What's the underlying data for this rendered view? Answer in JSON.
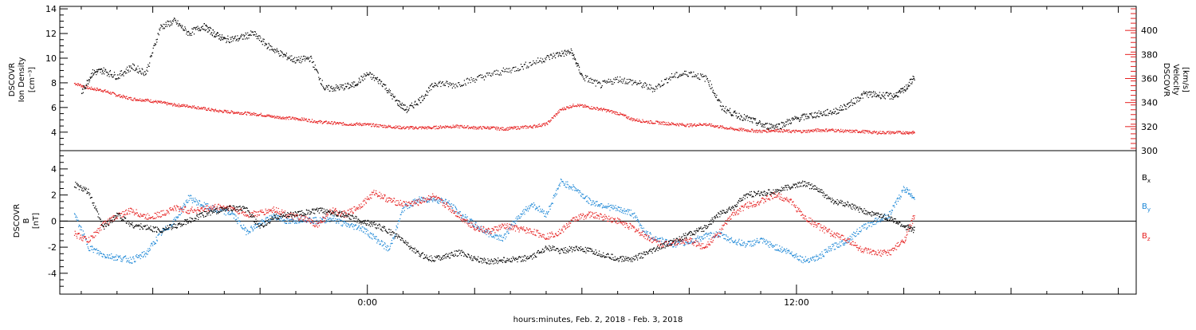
{
  "chart_data": [
    {
      "type": "scatter",
      "panel": "plasma",
      "ylabel_left": [
        "DSCOVR",
        "Ion Density",
        "[cm⁻³]"
      ],
      "ylabel_right": [
        "DSCOVR",
        "Velocity",
        "[km/s]"
      ],
      "ylim_left": [
        2.5,
        14.2
      ],
      "ylim_right": [
        300,
        420
      ],
      "yticks_left": [
        "4",
        "6",
        "8",
        "10",
        "12",
        "14"
      ],
      "yticks_left_values": [
        4,
        6,
        8,
        10,
        12,
        14
      ],
      "yticks_right": [
        "300",
        "320",
        "340",
        "360",
        "380",
        "400"
      ],
      "yticks_right_values": [
        300,
        320,
        340,
        360,
        380,
        400
      ],
      "series": [
        {
          "name": "",
          "axis": "left",
          "color": "#000000",
          "x": [
            -8,
            -7.7,
            -7.4,
            -7,
            -6.6,
            -6.2,
            -5.8,
            -5.4,
            -5,
            -4.6,
            -4.3,
            -4,
            -3.6,
            -3.2,
            -2.8,
            -2.4,
            -2,
            -1.6,
            -1.2,
            -0.8,
            -0.4,
            0,
            0.4,
            0.8,
            1.1,
            1.5,
            1.9,
            2.4,
            3,
            3.6,
            4.2,
            4.8,
            5.3,
            5.7,
            6,
            6.5,
            7,
            7.5,
            8,
            8.5,
            9,
            9.5,
            9.9,
            10.3,
            10.7,
            11.1,
            11.5,
            11.9,
            12.3,
            12.7,
            13.1,
            13.5,
            13.9,
            14.3,
            14.7,
            15,
            15.3
          ],
          "y": [
            7.2,
            8.8,
            9.0,
            8.5,
            9.3,
            8.8,
            12.5,
            13.0,
            12.0,
            12.6,
            12.0,
            11.5,
            11.6,
            12.0,
            11.0,
            10.3,
            9.8,
            10.0,
            7.5,
            7.6,
            7.8,
            8.7,
            8.0,
            6.5,
            5.8,
            6.7,
            8.0,
            7.8,
            8.3,
            8.8,
            9.2,
            9.8,
            10.3,
            10.5,
            8.5,
            7.8,
            8.3,
            8.0,
            7.5,
            8.5,
            8.8,
            8.3,
            6.0,
            5.4,
            5.0,
            4.5,
            4.5,
            5.0,
            5.3,
            5.5,
            5.7,
            6.3,
            7.1,
            7.0,
            6.9,
            7.4,
            8.5
          ]
        },
        {
          "name": "",
          "axis": "right",
          "color": "#e62020",
          "x": [
            -8.2,
            -7.8,
            -7.4,
            -7,
            -6.6,
            -6.2,
            -5.8,
            -5.4,
            -5,
            -4.6,
            -4.2,
            -3.8,
            -3.4,
            -3,
            -2.6,
            -2.2,
            -1.8,
            -1.4,
            -1,
            -0.6,
            -0.2,
            0.2,
            0.6,
            1,
            1.4,
            1.8,
            2.2,
            2.6,
            3,
            3.4,
            3.8,
            4.2,
            4.6,
            5,
            5.4,
            5.8,
            6.2,
            6.6,
            7,
            7.4,
            7.8,
            8.2,
            8.6,
            9,
            9.4,
            9.8,
            10.2,
            10.6,
            11,
            11.4,
            11.8,
            12.2,
            12.6,
            13,
            13.4,
            13.8,
            14.2,
            14.6,
            15,
            15.3
          ],
          "y": [
            356,
            352,
            350,
            346,
            343,
            342,
            340,
            338,
            337,
            335,
            333,
            332,
            331,
            330,
            328,
            327,
            326,
            324,
            323,
            322,
            322,
            321,
            320,
            319,
            319,
            319,
            320,
            320,
            319,
            319,
            318,
            319,
            320,
            322,
            334,
            338,
            336,
            334,
            331,
            326,
            324,
            323,
            322,
            321,
            322,
            320,
            318,
            317,
            316,
            317,
            316,
            316,
            317,
            317,
            316,
            316,
            315,
            315,
            315,
            315
          ]
        }
      ]
    },
    {
      "type": "scatter",
      "panel": "magnetic",
      "ylabel": [
        "DSCOVR",
        "B",
        "[nT]"
      ],
      "ylim": [
        -5.6,
        5.4
      ],
      "yticks": [
        "-4",
        "-2",
        "0",
        "2",
        "4"
      ],
      "yticks_values": [
        -4,
        -2,
        0,
        2,
        4
      ],
      "zero_line": true,
      "xlim": [
        -8.6,
        21.5
      ],
      "xticks": [
        "0:00",
        "12:00"
      ],
      "xticks_values": [
        0,
        12
      ],
      "xlabel": "hours:minutes, Feb.  2, 2018 - Feb.  3, 2018",
      "series": [
        {
          "name": "Bx",
          "color": "#000000",
          "x": [
            -8.2,
            -7.8,
            -7.4,
            -7,
            -6.6,
            -6.2,
            -5.8,
            -5.4,
            -5,
            -4.6,
            -4.2,
            -3.8,
            -3.4,
            -3,
            -2.6,
            -2.2,
            -1.8,
            -1.4,
            -1,
            -0.6,
            -0.2,
            0.2,
            0.6,
            1,
            1.4,
            1.8,
            2.2,
            2.6,
            3,
            3.4,
            3.8,
            4.2,
            4.6,
            5,
            5.4,
            5.8,
            6.2,
            6.6,
            7,
            7.4,
            7.8,
            8.2,
            8.6,
            9,
            9.4,
            9.8,
            10.2,
            10.6,
            11,
            11.4,
            11.8,
            12.2,
            12.6,
            13,
            13.4,
            13.8,
            14.2,
            14.6,
            15,
            15.3
          ],
          "y": [
            2.8,
            2.2,
            -0.5,
            0.5,
            -0.3,
            -0.5,
            -0.7,
            -0.4,
            0.0,
            0.5,
            0.8,
            1.0,
            0.9,
            -0.5,
            0.3,
            0.5,
            0.6,
            0.8,
            0.7,
            0.4,
            0.0,
            -0.3,
            -0.8,
            -1.5,
            -2.5,
            -2.9,
            -2.7,
            -2.4,
            -2.9,
            -3.1,
            -3.0,
            -2.9,
            -2.8,
            -2.0,
            -2.3,
            -2.1,
            -2.3,
            -2.6,
            -2.9,
            -2.9,
            -2.5,
            -2.0,
            -1.5,
            -1.0,
            -0.6,
            0.5,
            1.0,
            2.0,
            2.1,
            2.3,
            2.6,
            2.9,
            2.4,
            1.5,
            1.3,
            0.8,
            0.5,
            0.2,
            -0.4,
            -0.7
          ]
        },
        {
          "name": "By",
          "color": "#1a86d6",
          "x": [
            -8.2,
            -7.8,
            -7.4,
            -7,
            -6.6,
            -6.2,
            -5.8,
            -5.4,
            -5,
            -4.6,
            -4.2,
            -3.8,
            -3.4,
            -3,
            -2.6,
            -2.2,
            -1.8,
            -1.4,
            -1,
            -0.6,
            -0.2,
            0.2,
            0.6,
            1,
            1.4,
            1.8,
            2.2,
            2.6,
            3,
            3.4,
            3.8,
            4.2,
            4.6,
            5,
            5.4,
            5.8,
            6.2,
            6.6,
            7,
            7.4,
            7.8,
            8.2,
            8.6,
            9,
            9.4,
            9.8,
            10.2,
            10.6,
            11,
            11.4,
            11.8,
            12.2,
            12.6,
            13,
            13.4,
            13.8,
            14.2,
            14.6,
            15,
            15.3
          ],
          "y": [
            0.5,
            -2.0,
            -2.6,
            -2.8,
            -3.0,
            -2.5,
            -1.0,
            0.0,
            1.8,
            1.2,
            0.8,
            0.6,
            -0.8,
            -0.2,
            0.4,
            -0.1,
            0.2,
            0.0,
            0.2,
            -0.3,
            -0.5,
            -1.3,
            -2.2,
            1.0,
            1.6,
            1.7,
            1.5,
            0.5,
            -0.3,
            -1.0,
            -1.3,
            0.3,
            1.3,
            0.5,
            3.0,
            2.5,
            1.5,
            1.2,
            0.9,
            0.6,
            -1.0,
            -1.5,
            -1.8,
            -1.6,
            -1.2,
            -1.0,
            -1.5,
            -1.8,
            -1.5,
            -2.0,
            -2.4,
            -3.0,
            -2.8,
            -2.0,
            -1.5,
            -0.6,
            0.0,
            0.5,
            2.5,
            1.8
          ]
        },
        {
          "name": "Bz",
          "color": "#e62020",
          "x": [
            -8.2,
            -7.8,
            -7.4,
            -7,
            -6.6,
            -6.2,
            -5.8,
            -5.4,
            -5,
            -4.6,
            -4.2,
            -3.8,
            -3.4,
            -3,
            -2.6,
            -2.2,
            -1.8,
            -1.4,
            -1,
            -0.6,
            -0.2,
            0.2,
            0.6,
            1,
            1.4,
            1.8,
            2.2,
            2.6,
            3,
            3.4,
            3.8,
            4.2,
            4.6,
            5,
            5.4,
            5.8,
            6.2,
            6.6,
            7,
            7.4,
            7.8,
            8.2,
            8.6,
            9,
            9.4,
            9.8,
            10.2,
            10.6,
            11,
            11.4,
            11.8,
            12.2,
            12.6,
            13,
            13.4,
            13.8,
            14.2,
            14.6,
            15,
            15.3
          ],
          "y": [
            -1.0,
            -1.5,
            -0.3,
            0.4,
            0.8,
            0.3,
            0.5,
            1.0,
            0.8,
            0.9,
            1.1,
            1.0,
            0.5,
            0.6,
            0.9,
            0.4,
            0.2,
            -0.3,
            0.8,
            0.5,
            1.2,
            2.2,
            1.6,
            1.3,
            1.4,
            1.9,
            1.2,
            0.3,
            -0.5,
            -0.8,
            -0.4,
            -0.6,
            -0.8,
            -1.2,
            -0.8,
            0.2,
            0.5,
            0.3,
            0.0,
            -0.5,
            -1.2,
            -1.8,
            -1.6,
            -1.5,
            -2.0,
            -1.0,
            0.5,
            1.2,
            1.5,
            2.0,
            1.6,
            0.3,
            -0.4,
            -1.0,
            -1.4,
            -2.2,
            -2.5,
            -2.4,
            -1.5,
            0.5
          ]
        }
      ],
      "legend": {
        "placement": "right",
        "entries": [
          {
            "base": "B",
            "sub": "x",
            "color": "#000000"
          },
          {
            "base": "B",
            "sub": "y",
            "color": "#1a86d6"
          },
          {
            "base": "B",
            "sub": "z",
            "color": "#e62020"
          }
        ]
      }
    }
  ]
}
